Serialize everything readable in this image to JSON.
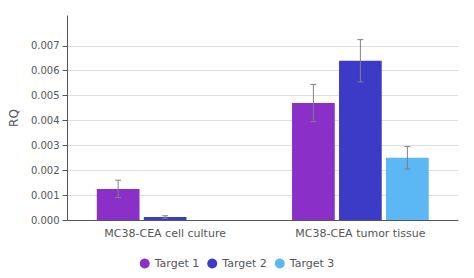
{
  "chart_data": {
    "type": "bar",
    "categories": [
      "MC38-CEA cell culture",
      "MC38-CEA tumor tissue"
    ],
    "series": [
      {
        "name": "Target 1",
        "color": "#8B2FC9",
        "values": [
          0.00125,
          0.0047
        ],
        "errors": [
          0.00035,
          0.00075
        ]
      },
      {
        "name": "Target 2",
        "color": "#3B3BC8",
        "values": [
          0.00012,
          0.0064
        ],
        "errors": [
          5e-05,
          0.00085
        ]
      },
      {
        "name": "Target 3",
        "color": "#5BB8F5",
        "values": [
          null,
          0.0025
        ],
        "errors": [
          null,
          0.00045
        ]
      }
    ],
    "ylabel": "RQ",
    "ylim": [
      0,
      0.0082
    ],
    "yticks": [
      {
        "value": 0,
        "label": "0.000"
      },
      0.001,
      0.002,
      0.003,
      0.004,
      0.005,
      0.006,
      0.007
    ],
    "grid": true,
    "legend": "bottom"
  }
}
